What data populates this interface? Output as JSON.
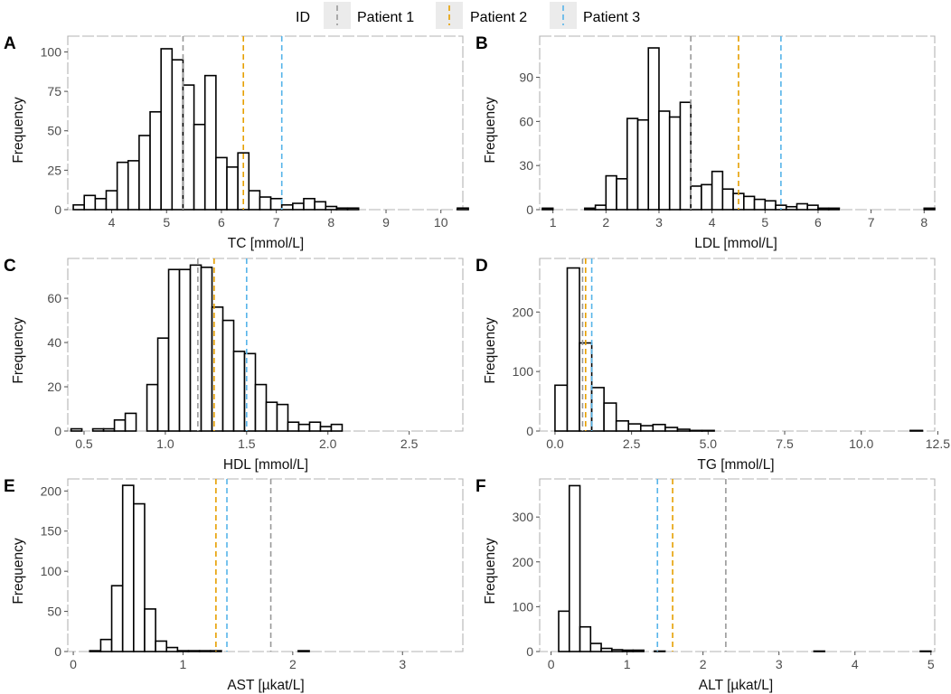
{
  "legend": {
    "title": "ID",
    "entries": [
      {
        "label": "Patient 1",
        "color": "#999999"
      },
      {
        "label": "Patient 2",
        "color": "#E69F00"
      },
      {
        "label": "Patient 3",
        "color": "#56B4E9"
      }
    ]
  },
  "chart_data": [
    {
      "type": "bar",
      "panel": "A",
      "xlabel": "TC [mmol/L]",
      "ylabel": "Frequency",
      "xlim": [
        3.2,
        10.4
      ],
      "ylim": [
        0,
        110
      ],
      "xticks": [
        4,
        5,
        6,
        7,
        8,
        9,
        10
      ],
      "yticks": [
        0,
        25,
        50,
        75,
        100
      ],
      "bin_start": 3.3,
      "bin_width": 0.2,
      "counts": [
        3,
        9,
        7,
        12,
        30,
        31,
        47,
        62,
        102,
        95,
        79,
        54,
        85,
        33,
        27,
        36,
        12,
        8,
        7,
        3,
        4,
        7,
        5,
        2,
        1,
        1,
        0,
        0,
        0,
        0,
        0,
        0,
        0,
        0,
        0,
        1
      ],
      "vlines": [
        5.3,
        6.4,
        7.1
      ]
    },
    {
      "type": "bar",
      "panel": "B",
      "xlabel": "LDL [mmol/L]",
      "ylabel": "Frequency",
      "xlim": [
        0.75,
        8.2
      ],
      "ylim": [
        0,
        118
      ],
      "xticks": [
        1,
        2,
        3,
        4,
        5,
        6,
        7,
        8
      ],
      "yticks": [
        0,
        30,
        60,
        90
      ],
      "bin_start": 0.8,
      "bin_width": 0.2,
      "counts": [
        1,
        0,
        0,
        0,
        1,
        3,
        23,
        21,
        62,
        61,
        110,
        67,
        63,
        73,
        16,
        17,
        26,
        14,
        11,
        9,
        7,
        6,
        3,
        2,
        4,
        3,
        1,
        1,
        0,
        0,
        0,
        0,
        0,
        0,
        0,
        0,
        1
      ],
      "vlines": [
        3.6,
        4.5,
        5.3
      ]
    },
    {
      "type": "bar",
      "panel": "C",
      "xlabel": "HDL [mmol/L]",
      "ylabel": "Frequency",
      "xlim": [
        0.4,
        2.83
      ],
      "ylim": [
        0,
        78
      ],
      "xticks": [
        0.5,
        1.0,
        1.5,
        2.0,
        2.5
      ],
      "yticks": [
        0,
        20,
        40,
        60
      ],
      "bin_start": 0.42,
      "bin_width": 0.0667,
      "counts": [
        1,
        0,
        1,
        1,
        5,
        8,
        0,
        21,
        42,
        73,
        73,
        75,
        74,
        56,
        50,
        36,
        35,
        21,
        13,
        12,
        4,
        3,
        4,
        2,
        3
      ],
      "vlines": [
        1.2,
        1.3,
        1.5
      ]
    },
    {
      "type": "bar",
      "panel": "D",
      "xlabel": "TG [mmol/L]",
      "ylabel": "Frequency",
      "xlim": [
        -0.5,
        12.4
      ],
      "ylim": [
        0,
        290
      ],
      "xticks": [
        0.0,
        2.5,
        5.0,
        7.5,
        10.0,
        12.5
      ],
      "yticks": [
        0,
        100,
        200
      ],
      "bin_start": 0.0,
      "bin_width": 0.4,
      "counts": [
        77,
        274,
        148,
        73,
        47,
        17,
        12,
        9,
        11,
        6,
        3,
        1,
        1,
        0,
        0,
        0,
        0,
        0,
        0,
        0,
        0,
        0,
        0,
        0,
        0,
        0,
        0,
        0,
        0,
        1
      ],
      "vlines": [
        0.9,
        1.0,
        1.2
      ]
    },
    {
      "type": "bar",
      "panel": "E",
      "xlabel": "AST [µkat/L]",
      "ylabel": "Frequency",
      "xlim": [
        -0.05,
        3.55
      ],
      "ylim": [
        0,
        215
      ],
      "xticks": [
        0,
        1,
        2,
        3
      ],
      "yticks": [
        0,
        50,
        100,
        150,
        200
      ],
      "bin_start": 0.05,
      "bin_width": 0.1,
      "counts": [
        0,
        1,
        15,
        82,
        207,
        184,
        53,
        13,
        5,
        1,
        1,
        1,
        1,
        0,
        0,
        0,
        0,
        0,
        0,
        0,
        1,
        0,
        0,
        0,
        0,
        0,
        0,
        0,
        0,
        0,
        0,
        0,
        0,
        0
      ],
      "vlines": [
        1.8,
        1.3,
        1.4
      ]
    },
    {
      "type": "bar",
      "panel": "F",
      "xlabel": "ALT [µkat/L]",
      "ylabel": "Frequency",
      "xlim": [
        -0.15,
        5.05
      ],
      "ylim": [
        0,
        385
      ],
      "xticks": [
        0,
        1,
        2,
        3,
        4,
        5
      ],
      "yticks": [
        0,
        100,
        200,
        300
      ],
      "bin_start": 0.1,
      "bin_width": 0.14,
      "counts": [
        90,
        370,
        55,
        18,
        7,
        4,
        3,
        3,
        0,
        1,
        0,
        0,
        0,
        0,
        0,
        0,
        0,
        0,
        0,
        0,
        0,
        0,
        0,
        0,
        1,
        0,
        0,
        0,
        0,
        0,
        0,
        0,
        0,
        0,
        1
      ],
      "vlines": [
        2.3,
        1.6,
        1.4
      ]
    }
  ]
}
